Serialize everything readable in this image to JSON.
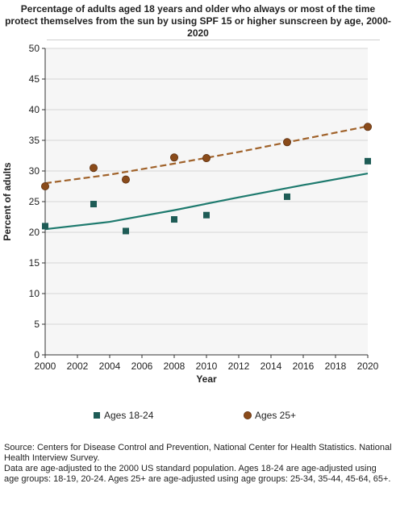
{
  "chart_data": {
    "type": "scatter",
    "title": "Percentage of adults aged 18 years and older who always or most of the time protect themselves from the sun by using SPF 15 or higher sunscreen by age, 2000-2020",
    "title_lines": [
      "Percentage of adults aged 18 years and older who always or most of the time",
      "protect themselves from the sun by using SPF 15 or higher sunscreen by age, 2000-",
      "2020"
    ],
    "xlabel": "Year",
    "ylabel": "Percent of adults",
    "xlim": [
      2000,
      2020
    ],
    "ylim": [
      0,
      50
    ],
    "xticks": [
      2000,
      2002,
      2004,
      2006,
      2008,
      2010,
      2012,
      2014,
      2016,
      2018,
      2020
    ],
    "yticks": [
      0,
      5,
      10,
      15,
      20,
      25,
      30,
      35,
      40,
      45,
      50
    ],
    "grid": "horizontal",
    "legend_position": "bottom",
    "series": [
      {
        "name": "Ages 18-24",
        "marker": "square",
        "color": "#1e5c56",
        "trend_color": "#1e7a6e",
        "trend_style": "solid",
        "trend": [
          [
            2000,
            20.5
          ],
          [
            2004,
            21.7
          ],
          [
            2008,
            23.6
          ],
          [
            2012,
            25.7
          ],
          [
            2016,
            27.7
          ],
          [
            2020,
            29.6
          ]
        ],
        "points": [
          {
            "x": 2000,
            "y": 21.0
          },
          {
            "x": 2003,
            "y": 24.6
          },
          {
            "x": 2005,
            "y": 20.2
          },
          {
            "x": 2008,
            "y": 22.1
          },
          {
            "x": 2010,
            "y": 22.8
          },
          {
            "x": 2015,
            "y": 25.8
          },
          {
            "x": 2020,
            "y": 31.6
          }
        ]
      },
      {
        "name": "Ages 25+",
        "marker": "circle",
        "color": "#8a4b1a",
        "trend_color": "#a0622a",
        "trend_style": "dashed",
        "trend": [
          [
            2000,
            28.0
          ],
          [
            2004,
            29.4
          ],
          [
            2008,
            31.2
          ],
          [
            2012,
            33.1
          ],
          [
            2016,
            35.2
          ],
          [
            2020,
            37.3
          ]
        ],
        "points": [
          {
            "x": 2000,
            "y": 27.5
          },
          {
            "x": 2003,
            "y": 30.5
          },
          {
            "x": 2005,
            "y": 28.6
          },
          {
            "x": 2008,
            "y": 32.2
          },
          {
            "x": 2010,
            "y": 32.1
          },
          {
            "x": 2015,
            "y": 34.7
          },
          {
            "x": 2020,
            "y": 37.2
          }
        ]
      }
    ]
  },
  "notes": {
    "source": "Source: Centers for Disease Control and Prevention, National Center for Health Statistics. National Health Interview Survey.",
    "adjustment": "Data are age-adjusted to the 2000 US standard population. Ages 18-24 are age-adjusted using age groups: 18-19, 20-24. Ages 25+ are age-adjusted using age groups: 25-34, 35-44, 45-64, 65+."
  }
}
